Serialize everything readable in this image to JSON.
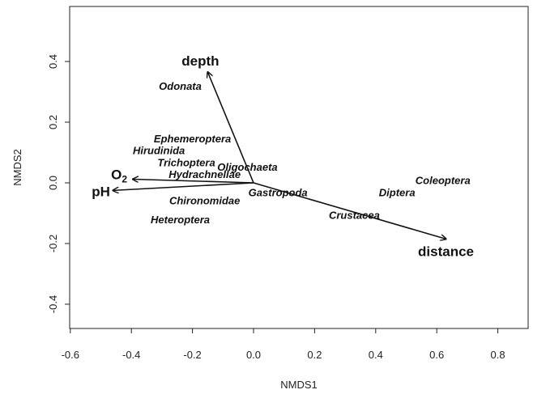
{
  "chart_data": {
    "type": "scatter",
    "title": "",
    "xlabel": "NMDS1",
    "ylabel": "NMDS2",
    "xlim": [
      -0.6,
      0.9
    ],
    "ylim": [
      -0.48,
      0.58
    ],
    "x_ticks": [
      "-0.6",
      "-0.4",
      "-0.2",
      "0.0",
      "0.2",
      "0.4",
      "0.6",
      "0.8"
    ],
    "x_tick_values": [
      -0.6,
      -0.4,
      -0.2,
      0.0,
      0.2,
      0.4,
      0.6,
      0.8
    ],
    "y_ticks": [
      "-0.4",
      "-0.2",
      "0.0",
      "0.2",
      "0.4"
    ],
    "y_tick_values": [
      -0.4,
      -0.2,
      0.0,
      0.2,
      0.4
    ],
    "grid": false,
    "species": [
      {
        "name": "Odonata",
        "x": -0.24,
        "y": 0.32
      },
      {
        "name": "Ephemeroptera",
        "x": -0.2,
        "y": 0.147
      },
      {
        "name": "Hirudinida",
        "x": -0.31,
        "y": 0.108
      },
      {
        "name": "Trichoptera",
        "x": -0.22,
        "y": 0.068
      },
      {
        "name": "Oligochaeta",
        "x": -0.02,
        "y": 0.053
      },
      {
        "name": "Hydrachnellae",
        "x": -0.16,
        "y": 0.03
      },
      {
        "name": "Gastropoda",
        "x": 0.08,
        "y": -0.03
      },
      {
        "name": "Diptera",
        "x": 0.47,
        "y": -0.03
      },
      {
        "name": "Coleoptera",
        "x": 0.62,
        "y": 0.01
      },
      {
        "name": "Chironomidae",
        "x": -0.16,
        "y": -0.057
      },
      {
        "name": "Crustacea",
        "x": 0.33,
        "y": -0.105
      },
      {
        "name": "Heteroptera",
        "x": -0.24,
        "y": -0.12
      }
    ],
    "vectors": [
      {
        "name": "depth",
        "x": -0.15,
        "y": 0.365
      },
      {
        "name": "O",
        "subscript": "2",
        "x": -0.395,
        "y": 0.012
      },
      {
        "name": "pH",
        "x": -0.46,
        "y": -0.025
      },
      {
        "name": "distance",
        "x": 0.63,
        "y": -0.185
      }
    ]
  }
}
